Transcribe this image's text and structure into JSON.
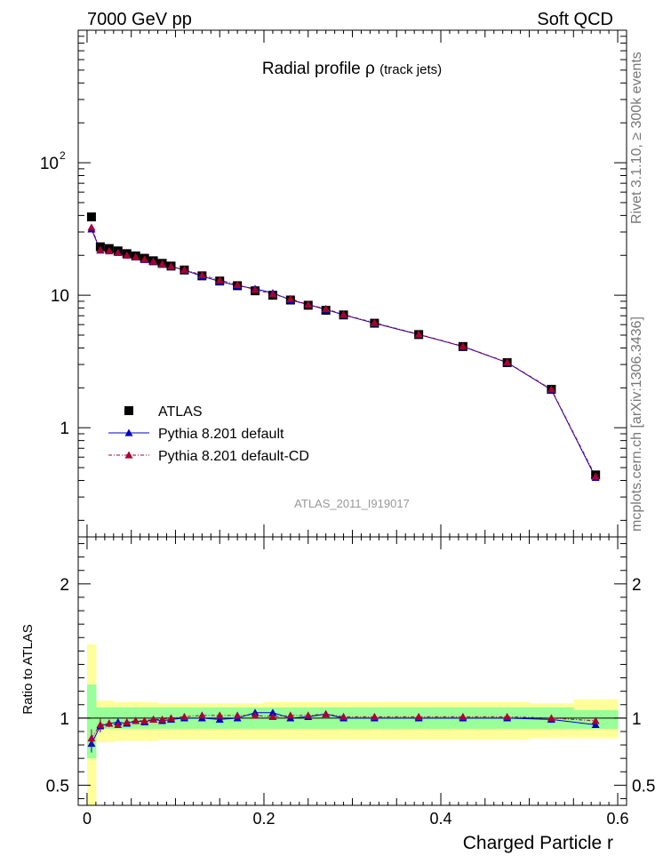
{
  "header": {
    "left": "7000 GeV pp",
    "right": "Soft QCD"
  },
  "side_labels": {
    "rivet": "Rivet 3.1.10, ≥ 300k events",
    "mcplots": "mcplots.cern.ch [arXiv:1306.3436]"
  },
  "chart_data": [
    {
      "type": "scatter",
      "panel": "main",
      "title": "Radial profile  ρ (track jets)",
      "title_main": "Radial profile  ρ",
      "title_sub": "(track jets)",
      "watermark": "ATLAS_2011_I919017",
      "xlim": [
        -0.01,
        0.61
      ],
      "ylim": [
        0.15,
        1000
      ],
      "yscale": "log",
      "ytick_labels": [
        "1",
        "10",
        "10"
      ],
      "ytick_sup": "2",
      "legend_position": "lower-left",
      "x": [
        0.005,
        0.015,
        0.025,
        0.035,
        0.045,
        0.055,
        0.065,
        0.075,
        0.085,
        0.095,
        0.11,
        0.13,
        0.15,
        0.17,
        0.19,
        0.21,
        0.23,
        0.25,
        0.27,
        0.29,
        0.325,
        0.375,
        0.425,
        0.475,
        0.525,
        0.575
      ],
      "series": [
        {
          "name": "ATLAS",
          "color": "#000000",
          "marker": "square",
          "values": [
            39.0,
            23.2,
            22.5,
            21.6,
            20.6,
            19.8,
            19.0,
            18.2,
            17.4,
            16.6,
            15.5,
            14.0,
            12.8,
            11.8,
            10.8,
            10.0,
            9.2,
            8.4,
            7.7,
            7.1,
            6.15,
            5.05,
            4.1,
            3.1,
            1.95,
            0.44
          ]
        },
        {
          "name": "Pythia 8.201 default",
          "color": "#0000cc",
          "marker": "triangle",
          "line": "solid",
          "values": [
            31.5,
            21.8,
            21.5,
            21.0,
            20.0,
            19.4,
            18.5,
            18.0,
            17.1,
            16.5,
            15.5,
            13.9,
            12.7,
            11.8,
            11.2,
            10.4,
            9.2,
            8.5,
            7.8,
            7.1,
            6.15,
            5.05,
            4.1,
            3.1,
            1.93,
            0.42
          ]
        },
        {
          "name": "Pythia 8.201 default-CD",
          "color": "#aa0033",
          "marker": "triangle",
          "line": "dashdot",
          "values": [
            32.5,
            22.0,
            21.6,
            20.9,
            20.0,
            19.5,
            18.7,
            18.0,
            17.2,
            16.5,
            15.6,
            14.2,
            13.0,
            12.0,
            11.0,
            10.2,
            9.4,
            8.5,
            7.9,
            7.15,
            6.2,
            5.08,
            4.12,
            3.12,
            1.95,
            0.43
          ]
        }
      ]
    },
    {
      "type": "scatter",
      "panel": "ratio",
      "ylabel": "Ratio to ATLAS",
      "xlabel": "Charged Particle r",
      "xlim": [
        -0.01,
        0.61
      ],
      "ylim": [
        0.35,
        2.35
      ],
      "xtick_labels": [
        "0",
        "0.2",
        "0.4",
        "0.6"
      ],
      "ytick_labels": [
        "0.5",
        "1",
        "2"
      ],
      "x": [
        0.005,
        0.015,
        0.025,
        0.035,
        0.045,
        0.055,
        0.065,
        0.075,
        0.085,
        0.095,
        0.11,
        0.13,
        0.15,
        0.17,
        0.19,
        0.21,
        0.23,
        0.25,
        0.27,
        0.29,
        0.325,
        0.375,
        0.425,
        0.475,
        0.525,
        0.575
      ],
      "bands": {
        "stat_color": "#99ff99",
        "total_color": "#ffff99",
        "bin_edges": [
          0.0,
          0.01,
          0.02,
          0.03,
          0.04,
          0.05,
          0.06,
          0.07,
          0.08,
          0.09,
          0.1,
          0.12,
          0.14,
          0.16,
          0.18,
          0.2,
          0.22,
          0.24,
          0.26,
          0.28,
          0.3,
          0.35,
          0.4,
          0.45,
          0.5,
          0.55,
          0.6
        ],
        "stat_low": [
          0.7,
          0.92,
          0.92,
          0.92,
          0.92,
          0.92,
          0.92,
          0.92,
          0.92,
          0.92,
          0.92,
          0.92,
          0.92,
          0.92,
          0.92,
          0.92,
          0.92,
          0.92,
          0.92,
          0.92,
          0.92,
          0.92,
          0.92,
          0.92,
          0.92,
          0.92
        ],
        "stat_high": [
          1.25,
          1.08,
          1.08,
          1.08,
          1.08,
          1.08,
          1.08,
          1.08,
          1.08,
          1.08,
          1.08,
          1.08,
          1.08,
          1.08,
          1.08,
          1.08,
          1.08,
          1.08,
          1.08,
          1.08,
          1.08,
          1.08,
          1.08,
          1.08,
          1.08,
          1.06
        ],
        "total_low": [
          0.3,
          0.82,
          0.82,
          0.83,
          0.83,
          0.83,
          0.83,
          0.83,
          0.84,
          0.84,
          0.84,
          0.84,
          0.84,
          0.84,
          0.84,
          0.84,
          0.84,
          0.84,
          0.84,
          0.84,
          0.84,
          0.84,
          0.84,
          0.84,
          0.85,
          0.85
        ],
        "total_high": [
          1.55,
          1.13,
          1.13,
          1.12,
          1.12,
          1.12,
          1.12,
          1.12,
          1.11,
          1.11,
          1.11,
          1.11,
          1.11,
          1.11,
          1.11,
          1.12,
          1.12,
          1.12,
          1.12,
          1.12,
          1.12,
          1.12,
          1.12,
          1.12,
          1.11,
          1.14
        ]
      },
      "series": [
        {
          "name": "Pythia 8.201 default",
          "color": "#0000cc",
          "values": [
            0.81,
            0.94,
            0.96,
            0.97,
            0.96,
            0.98,
            0.97,
            0.99,
            0.98,
            0.99,
            1.0,
            1.0,
            0.99,
            1.0,
            1.04,
            1.04,
            1.0,
            1.01,
            1.03,
            1.0,
            1.0,
            1.0,
            1.0,
            1.0,
            0.99,
            0.95
          ]
        },
        {
          "name": "Pythia 8.201 default-CD",
          "color": "#aa0033",
          "values": [
            0.85,
            0.95,
            0.96,
            0.95,
            0.97,
            0.98,
            0.98,
            0.99,
            0.99,
            1.0,
            1.01,
            1.02,
            1.02,
            1.02,
            1.02,
            1.01,
            1.02,
            1.02,
            1.03,
            1.01,
            1.01,
            1.01,
            1.01,
            1.01,
            1.0,
            0.98
          ]
        }
      ]
    }
  ]
}
